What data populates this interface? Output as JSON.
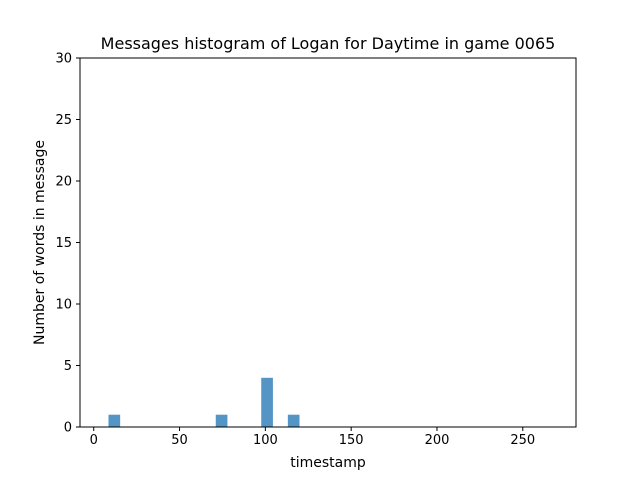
{
  "chart_data": {
    "type": "bar",
    "title": "Messages histogram of Logan for Daytime in game 0065",
    "xlabel": "timestamp",
    "ylabel": "Number of words in message",
    "xlim": [
      -8,
      281
    ],
    "ylim": [
      0,
      30
    ],
    "xticks": [
      0,
      50,
      100,
      150,
      200,
      250
    ],
    "yticks": [
      0,
      5,
      10,
      15,
      20,
      25,
      30
    ],
    "bar_width": 6.8,
    "bars": [
      {
        "x": 12,
        "value": 1
      },
      {
        "x": 74.5,
        "value": 1
      },
      {
        "x": 101,
        "value": 4
      },
      {
        "x": 116.5,
        "value": 1
      }
    ],
    "bar_color": "#5495c6",
    "grid": false,
    "legend": "none"
  }
}
